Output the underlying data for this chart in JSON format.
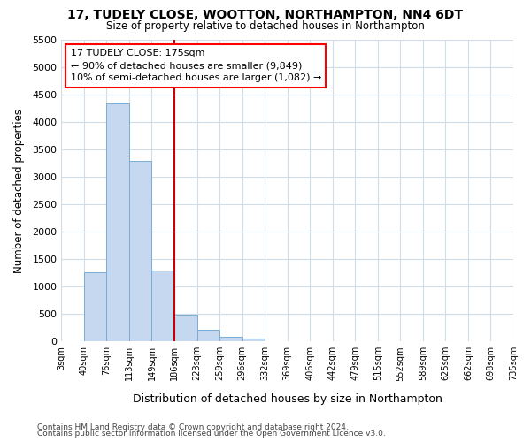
{
  "title_line1": "17, TUDELY CLOSE, WOOTTON, NORTHAMPTON, NN4 6DT",
  "title_line2": "Size of property relative to detached houses in Northampton",
  "xlabel": "Distribution of detached houses by size in Northampton",
  "ylabel": "Number of detached properties",
  "bin_labels": [
    "3sqm",
    "40sqm",
    "76sqm",
    "113sqm",
    "149sqm",
    "186sqm",
    "223sqm",
    "259sqm",
    "296sqm",
    "332sqm",
    "369sqm",
    "406sqm",
    "442sqm",
    "479sqm",
    "515sqm",
    "552sqm",
    "589sqm",
    "625sqm",
    "662sqm",
    "698sqm",
    "735sqm"
  ],
  "bar_values": [
    0,
    1260,
    4340,
    3300,
    1290,
    480,
    220,
    85,
    55,
    0,
    0,
    0,
    0,
    0,
    0,
    0,
    0,
    0,
    0,
    0
  ],
  "bar_color": "#c5d8f0",
  "bar_edge_color": "#7aadd4",
  "vline_color": "#cc0000",
  "ylim": [
    0,
    5500
  ],
  "yticks": [
    0,
    500,
    1000,
    1500,
    2000,
    2500,
    3000,
    3500,
    4000,
    4500,
    5000,
    5500
  ],
  "annotation_text": "17 TUDELY CLOSE: 175sqm\n← 90% of detached houses are smaller (9,849)\n10% of semi-detached houses are larger (1,082) →",
  "footer_line1": "Contains HM Land Registry data © Crown copyright and database right 2024.",
  "footer_line2": "Contains public sector information licensed under the Open Government Licence v3.0.",
  "bg_color": "#ffffff",
  "plot_bg_color": "#ffffff",
  "grid_color": "#d0dce8"
}
